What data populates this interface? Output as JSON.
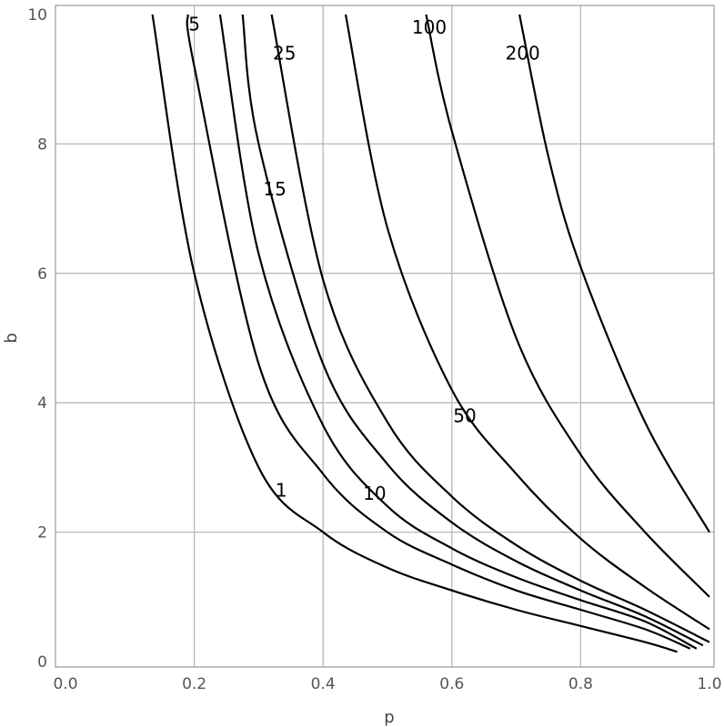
{
  "chart_data": {
    "type": "line",
    "title": "",
    "xlabel": "p",
    "ylabel": "b",
    "xlim": [
      0,
      1
    ],
    "ylim": [
      0,
      10
    ],
    "xticks": [
      "0.0",
      "0.2",
      "0.4",
      "0.6",
      "0.8",
      "1.0"
    ],
    "yticks": [
      "0",
      "2",
      "4",
      "6",
      "8",
      "10"
    ],
    "grid": true,
    "series": [
      {
        "name": "1",
        "x": [
          0.135,
          0.2,
          0.3,
          0.4,
          0.5,
          0.6,
          0.7,
          0.8,
          0.9,
          0.95
        ],
        "y": [
          10,
          6.0,
          3.0,
          2.0,
          1.45,
          1.1,
          0.8,
          0.55,
          0.3,
          0.15
        ],
        "label_at": [
          0.335,
          2.65
        ]
      },
      {
        "name": "5",
        "x": [
          0.19,
          0.2,
          0.3,
          0.4,
          0.5,
          0.6,
          0.7,
          0.8,
          0.9,
          0.97
        ],
        "y": [
          10,
          9.2,
          4.6,
          2.9,
          2.0,
          1.5,
          1.1,
          0.8,
          0.5,
          0.2
        ],
        "label_at": [
          0.2,
          9.85
        ]
      },
      {
        "name": "10",
        "x": [
          0.24,
          0.3,
          0.4,
          0.5,
          0.6,
          0.7,
          0.8,
          0.9,
          0.98
        ],
        "y": [
          10,
          6.3,
          3.65,
          2.4,
          1.75,
          1.3,
          0.95,
          0.62,
          0.2
        ],
        "label_at": [
          0.48,
          2.6
        ]
      },
      {
        "name": "15",
        "x": [
          0.275,
          0.3,
          0.4,
          0.5,
          0.6,
          0.7,
          0.8,
          0.9,
          0.99
        ],
        "y": [
          10,
          8.0,
          4.6,
          3.05,
          2.15,
          1.55,
          1.1,
          0.7,
          0.25
        ],
        "label_at": [
          0.325,
          7.3
        ]
      },
      {
        "name": "25",
        "x": [
          0.32,
          0.4,
          0.5,
          0.6,
          0.7,
          0.8,
          0.9,
          1.0
        ],
        "y": [
          10,
          5.9,
          3.7,
          2.55,
          1.8,
          1.25,
          0.8,
          0.3
        ],
        "label_at": [
          0.34,
          9.4
        ]
      },
      {
        "name": "50",
        "x": [
          0.435,
          0.5,
          0.6,
          0.7,
          0.8,
          0.9,
          1.0
        ],
        "y": [
          10,
          6.7,
          4.2,
          2.9,
          1.9,
          1.15,
          0.5
        ],
        "label_at": [
          0.62,
          3.8
        ]
      },
      {
        "name": "100",
        "x": [
          0.56,
          0.6,
          0.7,
          0.8,
          0.9,
          1.0
        ],
        "y": [
          10,
          8.2,
          5.0,
          3.2,
          2.0,
          1.0
        ],
        "label_at": [
          0.565,
          9.8
        ]
      },
      {
        "name": "200",
        "x": [
          0.705,
          0.75,
          0.8,
          0.9,
          1.0
        ],
        "y": [
          10,
          7.8,
          6.1,
          3.7,
          2.0
        ],
        "label_at": [
          0.71,
          9.4
        ]
      }
    ]
  }
}
